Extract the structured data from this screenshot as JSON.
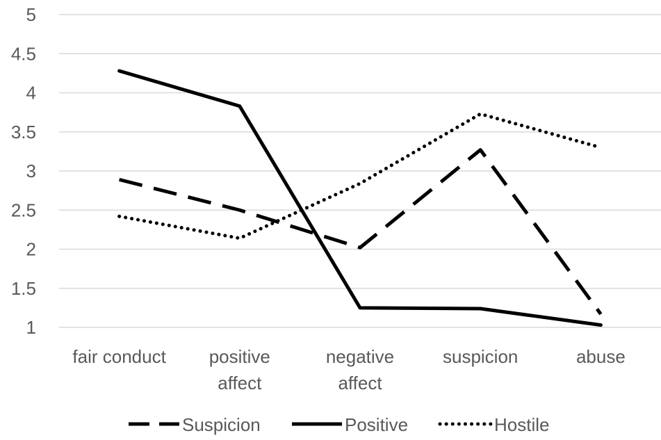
{
  "chart_data": {
    "type": "line",
    "title": "",
    "xlabel": "",
    "ylabel": "",
    "categories": [
      [
        "fair conduct"
      ],
      [
        "positive",
        "affect"
      ],
      [
        "negative",
        "affect"
      ],
      [
        "suspicion"
      ],
      [
        "abuse"
      ]
    ],
    "ylim": [
      1,
      5
    ],
    "yticks": [
      "1",
      "1.5",
      "2",
      "2.5",
      "3",
      "3.5",
      "4",
      "4.5",
      "5"
    ],
    "grid": true,
    "legend_position": "bottom",
    "series": [
      {
        "name": "Suspicion",
        "values": [
          2.89,
          2.5,
          2.02,
          3.27,
          1.17
        ],
        "style": "dashed",
        "color": "#000000"
      },
      {
        "name": "Positive",
        "values": [
          4.28,
          3.83,
          1.25,
          1.24,
          1.03
        ],
        "style": "solid",
        "color": "#000000"
      },
      {
        "name": "Hostile",
        "values": [
          2.42,
          2.14,
          2.84,
          3.73,
          3.3
        ],
        "style": "dotted",
        "color": "#000000"
      }
    ]
  }
}
